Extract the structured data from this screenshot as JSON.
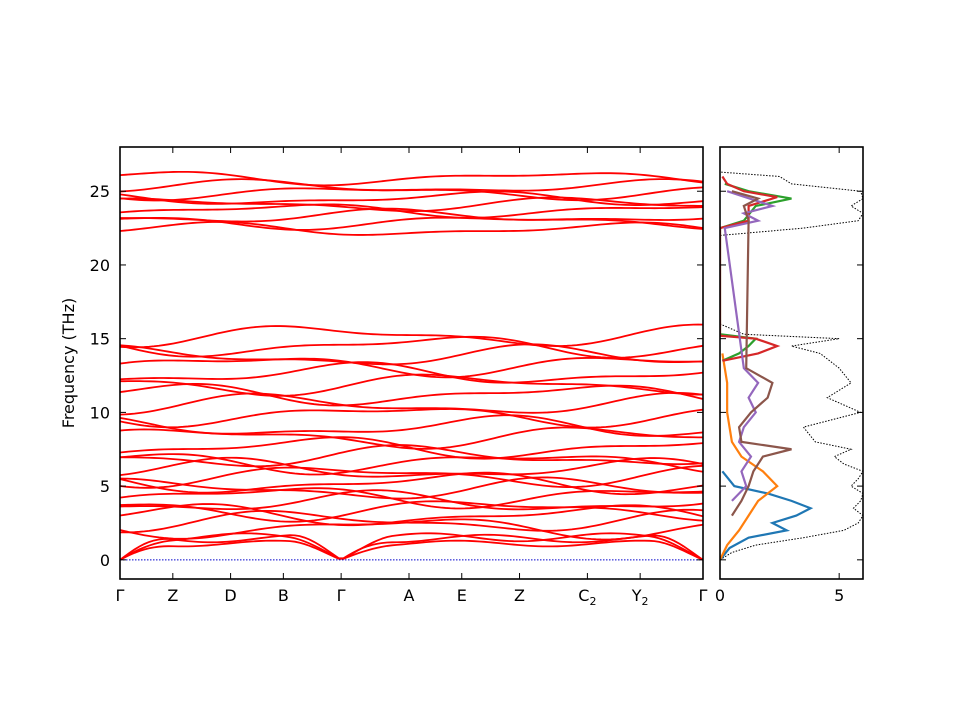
{
  "chart_data": [
    {
      "type": "line",
      "panel": "band-structure",
      "ylabel": "Frequency (THz)",
      "xlabel": "",
      "ylim": [
        -1.3,
        28
      ],
      "yticks": [
        0,
        5,
        10,
        15,
        20,
        25
      ],
      "ytick_labels": [
        "0",
        "5",
        "10",
        "15",
        "20",
        "25"
      ],
      "x_ticks": [
        {
          "pos": 0.0,
          "base": "Γ",
          "sub": ""
        },
        {
          "pos": 0.0906,
          "base": "Z",
          "sub": ""
        },
        {
          "pos": 0.1897,
          "base": "D",
          "sub": ""
        },
        {
          "pos": 0.2802,
          "base": "B",
          "sub": ""
        },
        {
          "pos": 0.3793,
          "base": "Γ",
          "sub": ""
        },
        {
          "pos": 0.4957,
          "base": "A",
          "sub": ""
        },
        {
          "pos": 0.5862,
          "base": "E",
          "sub": ""
        },
        {
          "pos": 0.6853,
          "base": "Z",
          "sub": ""
        },
        {
          "pos": 0.8017,
          "base": "C",
          "sub": "2"
        },
        {
          "pos": 0.8922,
          "base": "Y",
          "sub": "2"
        },
        {
          "pos": 1.0,
          "base": "Γ",
          "sub": ""
        }
      ],
      "series_color": "#ff0000",
      "zero_line_color": "#0000cc",
      "band_groups": {
        "acoustic_max": [
          1.7,
          1.3,
          1.8
        ],
        "optical_low": [
          2.2,
          2.6,
          3.0,
          3.4,
          3.9,
          4.3,
          4.8,
          5.2,
          5.7,
          6.1,
          6.6,
          7.0
        ],
        "optical_mid": [
          7.6,
          8.3,
          9.0,
          9.8,
          10.5,
          11.2,
          11.9,
          12.6,
          13.2,
          13.8,
          14.5,
          15.2
        ],
        "optical_high": [
          22.4,
          22.9,
          23.3,
          23.7,
          24.1,
          24.5,
          24.9,
          25.3,
          25.9
        ]
      }
    },
    {
      "type": "line",
      "panel": "phonon-dos",
      "xlim": [
        0,
        6
      ],
      "xticks": [
        0,
        5
      ],
      "xtick_labels": [
        "0",
        "5"
      ],
      "ylim": [
        -1.3,
        28
      ],
      "series_colors": [
        "#1f77b4",
        "#ff7f0e",
        "#2ca02c",
        "#d62728",
        "#9467bd",
        "#8c564b"
      ],
      "total_dos_color": "#000000",
      "total_dos": {
        "freq": [
          0,
          0.5,
          1,
          1.5,
          2,
          2.5,
          3,
          3.5,
          4,
          4.5,
          5,
          5.5,
          6,
          6.5,
          7,
          7.5,
          8,
          9,
          10,
          11,
          12,
          13,
          14,
          14.5,
          15,
          15.3,
          16,
          22,
          22.5,
          23,
          23.5,
          24,
          24.5,
          25,
          25.5,
          26,
          26.3
        ],
        "dos": [
          0,
          0.5,
          1.5,
          3.5,
          5.2,
          5.8,
          6.0,
          5.6,
          5.9,
          6.0,
          5.5,
          5.8,
          6.0,
          5.2,
          4.8,
          5.5,
          4.0,
          3.5,
          5.9,
          4.5,
          5.5,
          5.0,
          4.2,
          3.0,
          5.0,
          1.0,
          0,
          0,
          3.5,
          5.8,
          6.0,
          5.5,
          6.0,
          5.9,
          3.0,
          2.5,
          0
        ]
      },
      "partial_dos": [
        {
          "freq": [
            0,
            0.8,
            1.5,
            2.0,
            2.5,
            3.0,
            3.5,
            4.0,
            4.5,
            5.0,
            6.0
          ],
          "dos": [
            0,
            0.4,
            1.2,
            2.8,
            2.2,
            3.2,
            3.8,
            3.0,
            2.0,
            0.6,
            0.1
          ]
        },
        {
          "freq": [
            0,
            1,
            2,
            3,
            4,
            5,
            6,
            7,
            8,
            9,
            10,
            11,
            12,
            13,
            14
          ],
          "dos": [
            0,
            0.3,
            0.8,
            1.2,
            1.6,
            2.4,
            1.8,
            0.9,
            0.5,
            0.4,
            0.3,
            0.3,
            0.3,
            0.2,
            0.1
          ]
        },
        {
          "freq": [
            13.5,
            14,
            14.5,
            15,
            15.3,
            22.5,
            23,
            24,
            24.5,
            25,
            25.5
          ],
          "dos": [
            0.1,
            0.8,
            1.2,
            1.5,
            0,
            0,
            1.0,
            1.5,
            3.0,
            1.2,
            0.2
          ]
        },
        {
          "freq": [
            13.5,
            14,
            14.5,
            15,
            15.2,
            22.5,
            23,
            24,
            24.6,
            25,
            25.5,
            26
          ],
          "dos": [
            0.1,
            1.6,
            2.4,
            1.5,
            0,
            0,
            1.2,
            1.2,
            2.4,
            1.0,
            0.3,
            0.1
          ]
        },
        {
          "freq": [
            4,
            5,
            6,
            7,
            8,
            9,
            10,
            11,
            12,
            13,
            22.5,
            23,
            23.5,
            24,
            25
          ],
          "dos": [
            0.5,
            1.1,
            0.9,
            1.3,
            0.8,
            1.0,
            1.5,
            1.2,
            1.6,
            1.0,
            0.2,
            1.6,
            1.0,
            2.2,
            0.3
          ]
        },
        {
          "freq": [
            3,
            4,
            5,
            6,
            7,
            7.5,
            8,
            9,
            10,
            11,
            12,
            13,
            23,
            24,
            24.5,
            25
          ],
          "dos": [
            0.5,
            0.9,
            1.2,
            1.4,
            1.8,
            3.0,
            0.9,
            0.8,
            1.3,
            2.0,
            2.2,
            1.1,
            1.2,
            1.0,
            1.6,
            0.5
          ]
        }
      ]
    }
  ]
}
